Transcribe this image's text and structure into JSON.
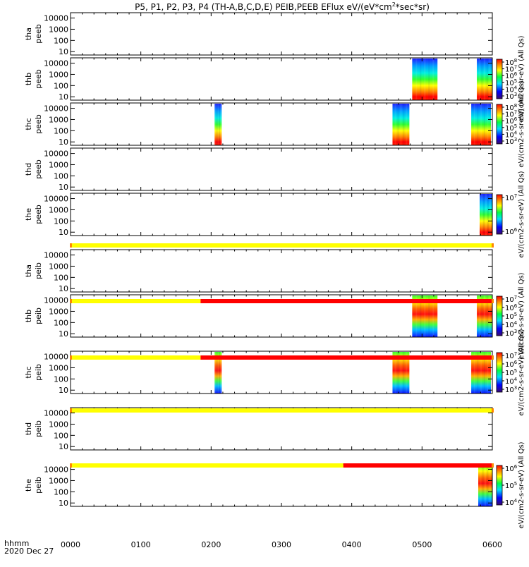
{
  "title_parts": {
    "pre": "P5, P1, P2, P3, P4 (TH-A,B,C,D,E) PEIB,PEEB EFlux eV/(eV*cm",
    "sup": "2",
    "post": "*sec*sr)"
  },
  "time_axis": {
    "ticks": [
      "0000",
      "0100",
      "0200",
      "0300",
      "0400",
      "0500",
      "0600"
    ],
    "label_line1": "hhmm",
    "label_line2": "2020 Dec 27"
  },
  "chart_data": {
    "type": "heatmap",
    "x_range_hours": [
      0,
      6
    ],
    "y_scale": "log",
    "y_ticks": [
      "10000",
      "1000",
      "100",
      "10"
    ],
    "y_range_eV": [
      5,
      30000
    ],
    "panels": [
      {
        "id": "thaeeb",
        "label1": "tha",
        "label2": "peeb",
        "data_blocks": [],
        "colorbar": null
      },
      {
        "id": "thbeeb",
        "label1": "thb",
        "label2": "peeb",
        "data_blocks": [
          {
            "t0": 4.86,
            "t1": 5.22,
            "profile": "electron"
          },
          {
            "t0": 5.78,
            "t1": 6.0,
            "profile": "electron"
          }
        ],
        "colorbar": {
          "labels": [
            "10^8",
            "10^7",
            "10^6",
            "10^5",
            "10^4",
            "10^3"
          ],
          "title": "eV/(cm2-s-sr-eV) (All Qs)"
        }
      },
      {
        "id": "thceeb",
        "label1": "thc",
        "label2": "peeb",
        "data_blocks": [
          {
            "t0": 2.05,
            "t1": 2.15,
            "profile": "electron"
          },
          {
            "t0": 4.58,
            "t1": 4.82,
            "profile": "electron"
          },
          {
            "t0": 5.7,
            "t1": 5.98,
            "profile": "electron"
          }
        ],
        "colorbar": {
          "labels": [
            "10^8",
            "10^7",
            "10^6",
            "10^5",
            "10^4",
            "10^3"
          ],
          "title": "eV/(cm2-s-sr-eV) (All Qs)"
        }
      },
      {
        "id": "thdeeb",
        "label1": "thd",
        "label2": "peeb",
        "data_blocks": [],
        "colorbar": null
      },
      {
        "id": "theeeb",
        "label1": "the",
        "label2": "peeb",
        "data_blocks": [
          {
            "t0": 5.82,
            "t1": 6.0,
            "profile": "electron"
          }
        ],
        "colorbar": {
          "labels": [
            "10^7",
            "10^6"
          ],
          "title": "eV/(cm2-s-sr-eV) (All Qs)"
        }
      },
      {
        "id": "thaeib",
        "label1": "tha",
        "label2": "peib",
        "data_blocks": [],
        "colorbar": null
      },
      {
        "id": "thbeib",
        "label1": "thb",
        "label2": "peib",
        "data_blocks": [
          {
            "t0": 4.86,
            "t1": 5.22,
            "profile": "ion"
          },
          {
            "t0": 5.78,
            "t1": 6.0,
            "profile": "ion"
          }
        ],
        "colorbar": {
          "labels": [
            "10^7",
            "10^6",
            "10^5",
            "10^4",
            "10^3"
          ],
          "title": "eV/(cm2-s-sr-eV) (All Qs)"
        }
      },
      {
        "id": "thceib",
        "label1": "thc",
        "label2": "peib",
        "data_blocks": [
          {
            "t0": 2.05,
            "t1": 2.15,
            "profile": "ion"
          },
          {
            "t0": 4.58,
            "t1": 4.82,
            "profile": "ion"
          },
          {
            "t0": 5.7,
            "t1": 5.98,
            "profile": "ion"
          }
        ],
        "colorbar": {
          "labels": [
            "10^7",
            "10^6",
            "10^5",
            "10^4",
            "10^3"
          ],
          "title": "eV/(cm2-s-sr-eV) (All Qs)"
        }
      },
      {
        "id": "thdeib",
        "label1": "thd",
        "label2": "peib",
        "data_blocks": [],
        "colorbar": null
      },
      {
        "id": "theeib",
        "label1": "the",
        "label2": "peib",
        "data_blocks": [
          {
            "t0": 5.8,
            "t1": 6.0,
            "profile": "ion"
          }
        ],
        "colorbar": {
          "labels": [
            "10^6",
            "10^5",
            "10^4"
          ],
          "title": "eV/(cm2-s-sr-eV) (All Qs)"
        }
      }
    ],
    "mode_bars": [
      {
        "after_panel": 4,
        "segments": [
          {
            "t0": 0.0,
            "t1": 6.0,
            "color": "#ffff00"
          }
        ]
      },
      {
        "after_panel": 5,
        "segments": [
          {
            "t0": 0.0,
            "t1": 1.85,
            "color": "#ffff00"
          },
          {
            "t0": 1.85,
            "t1": 6.0,
            "color": "#ff0000"
          }
        ]
      },
      {
        "after_panel": 6,
        "segments": [
          {
            "t0": 0.0,
            "t1": 1.85,
            "color": "#ffff00"
          },
          {
            "t0": 1.85,
            "t1": 6.0,
            "color": "#ff0000"
          }
        ]
      },
      {
        "after_panel": 7,
        "segments": [
          {
            "t0": 0.0,
            "t1": 6.0,
            "color": "#ffff00"
          }
        ]
      },
      {
        "after_panel": 8,
        "segments": [
          {
            "t0": 0.0,
            "t1": 3.88,
            "color": "#ffff00"
          },
          {
            "t0": 3.88,
            "t1": 6.0,
            "color": "#ff0000"
          }
        ]
      }
    ]
  },
  "colors": {
    "yellow": "#ffff00",
    "red": "#ff0000",
    "frame": "#000000"
  }
}
